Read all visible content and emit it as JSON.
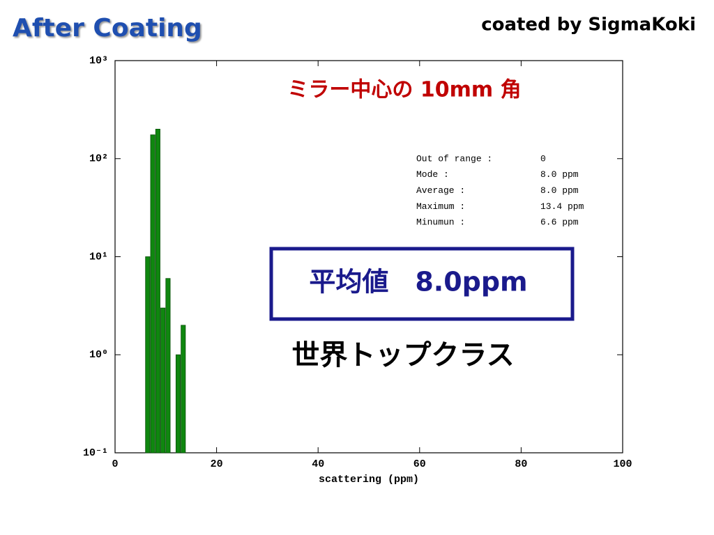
{
  "slide": {
    "title": "After Coating",
    "credit": "coated by SigmaKoki",
    "note": "ミラー中心の 10mm 角",
    "highlight": "平均値　8.0ppm",
    "caption": "世界トップクラス"
  },
  "chart_data": {
    "type": "histogram",
    "bins": [
      6,
      7,
      8,
      9,
      10,
      11,
      12,
      13,
      14
    ],
    "values": [
      10,
      175,
      200,
      3,
      6,
      0,
      1,
      2
    ],
    "color": "#0f870f",
    "xlabel": "scattering (ppm)",
    "xlim": [
      0,
      100
    ],
    "xticks": [
      0,
      20,
      40,
      60,
      80,
      100
    ],
    "ylim": [
      0.1,
      1000
    ],
    "log_y": true,
    "yticks": [
      {
        "value": 0.1,
        "label": "10⁻¹"
      },
      {
        "value": 1,
        "label": "10⁰"
      },
      {
        "value": 10,
        "label": "10¹"
      },
      {
        "value": 100,
        "label": "10²"
      },
      {
        "value": 1000,
        "label": "10³"
      }
    ],
    "stats": [
      [
        "Out of range :",
        "0"
      ],
      [
        "Mode :",
        "8.0 ppm"
      ],
      [
        "Average :",
        "8.0 ppm"
      ],
      [
        "Maximum :",
        "13.4 ppm"
      ],
      [
        "Minumun :",
        "6.6 ppm"
      ]
    ]
  }
}
